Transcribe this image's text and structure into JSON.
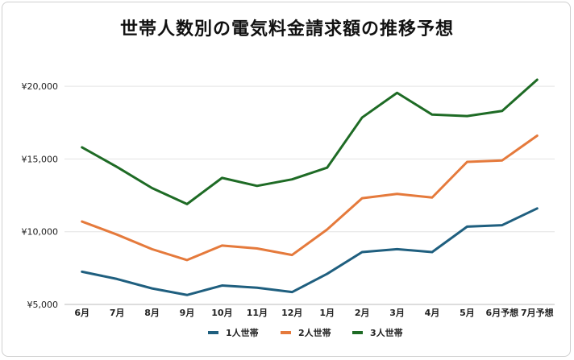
{
  "chart_data": {
    "type": "line",
    "title": "世帯人数別の電気料金請求額の推移予想",
    "categories": [
      "6月",
      "7月",
      "8月",
      "9月",
      "10月",
      "11月",
      "12月",
      "1月",
      "2月",
      "3月",
      "4月",
      "5月",
      "6月予想",
      "7月予想"
    ],
    "y_ticks": [
      "¥5,000",
      "¥10,000",
      "¥15,000",
      "¥20,000"
    ],
    "ylim": [
      5000,
      21500
    ],
    "grid": true,
    "legend_position": "bottom",
    "series": [
      {
        "name": "1人世帯",
        "color": "#1f5f7f",
        "values": [
          7250,
          6750,
          6100,
          5650,
          6300,
          6150,
          5850,
          7100,
          8600,
          8800,
          8600,
          10350,
          10450,
          11600
        ]
      },
      {
        "name": "2人世帯",
        "color": "#e57a3c",
        "values": [
          10700,
          9800,
          8800,
          8050,
          9050,
          8850,
          8400,
          10150,
          12300,
          12600,
          12350,
          14800,
          14900,
          16600
        ]
      },
      {
        "name": "3人世帯",
        "color": "#1e6b25",
        "values": [
          15800,
          14450,
          13000,
          11900,
          13700,
          13150,
          13600,
          14400,
          17850,
          19550,
          18050,
          17950,
          18300,
          20450
        ]
      }
    ]
  }
}
